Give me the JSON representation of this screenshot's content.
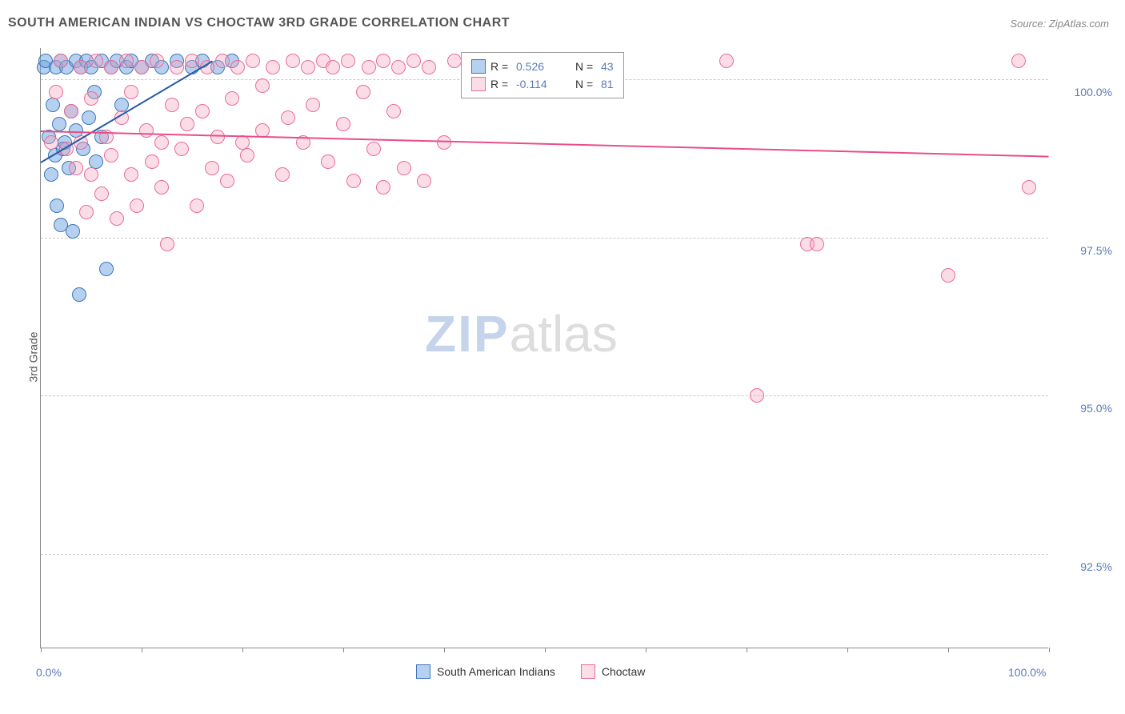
{
  "title": "SOUTH AMERICAN INDIAN VS CHOCTAW 3RD GRADE CORRELATION CHART",
  "source": "Source: ZipAtlas.com",
  "y_axis_label": "3rd Grade",
  "watermark": {
    "zip": "ZIP",
    "atlas": "atlas"
  },
  "chart": {
    "type": "scatter",
    "xlim": [
      0,
      100
    ],
    "ylim": [
      91,
      100.5
    ],
    "background_color": "#ffffff",
    "grid_color": "#cccccc",
    "grid_style": "dashed",
    "axis_color": "#888888",
    "y_ticks": [
      {
        "value": 100.0,
        "label": "100.0%"
      },
      {
        "value": 97.5,
        "label": "97.5%"
      },
      {
        "value": 95.0,
        "label": "95.0%"
      },
      {
        "value": 92.5,
        "label": "92.5%"
      }
    ],
    "x_ticks": [
      0,
      10,
      20,
      30,
      40,
      50,
      60,
      70,
      80,
      90,
      100
    ],
    "x_tick_labels": [
      {
        "value": 0,
        "label": "0.0%"
      },
      {
        "value": 100,
        "label": "100.0%"
      }
    ],
    "tick_label_color": "#5b7bb5",
    "tick_label_fontsize": 14,
    "marker_radius": 9,
    "marker_stroke_width": 1.2,
    "series": [
      {
        "name": "South American Indians",
        "label": "South American Indians",
        "fill_color": "#6ea4e180",
        "stroke_color": "#3f75b5",
        "r_value": "0.526",
        "n_value": "43",
        "trend": {
          "x1": 0,
          "y1": 98.7,
          "x2": 17,
          "y2": 100.3,
          "color": "#2a5aa5",
          "width": 2
        },
        "points": [
          [
            0.3,
            100.2
          ],
          [
            0.5,
            100.3
          ],
          [
            0.8,
            99.1
          ],
          [
            1.0,
            98.5
          ],
          [
            1.2,
            99.6
          ],
          [
            1.4,
            98.8
          ],
          [
            1.5,
            100.2
          ],
          [
            1.6,
            98.0
          ],
          [
            1.8,
            99.3
          ],
          [
            2.0,
            97.7
          ],
          [
            2.0,
            100.3
          ],
          [
            2.2,
            98.9
          ],
          [
            2.4,
            99.0
          ],
          [
            2.5,
            100.2
          ],
          [
            2.8,
            98.6
          ],
          [
            3.0,
            99.5
          ],
          [
            3.2,
            97.6
          ],
          [
            3.5,
            100.3
          ],
          [
            3.5,
            99.2
          ],
          [
            3.8,
            96.6
          ],
          [
            4.0,
            100.2
          ],
          [
            4.2,
            98.9
          ],
          [
            4.5,
            100.3
          ],
          [
            4.8,
            99.4
          ],
          [
            5.0,
            100.2
          ],
          [
            5.3,
            99.8
          ],
          [
            5.5,
            98.7
          ],
          [
            6.0,
            100.3
          ],
          [
            6.0,
            99.1
          ],
          [
            6.5,
            97.0
          ],
          [
            7.0,
            100.2
          ],
          [
            7.5,
            100.3
          ],
          [
            8.0,
            99.6
          ],
          [
            8.5,
            100.2
          ],
          [
            9.0,
            100.3
          ],
          [
            10.0,
            100.2
          ],
          [
            11.0,
            100.3
          ],
          [
            12.0,
            100.2
          ],
          [
            13.5,
            100.3
          ],
          [
            15.0,
            100.2
          ],
          [
            16.0,
            100.3
          ],
          [
            17.5,
            100.2
          ],
          [
            19.0,
            100.3
          ]
        ]
      },
      {
        "name": "Choctaw",
        "label": "Choctaw",
        "fill_color": "#f4a5bd60",
        "stroke_color": "#e86c9a",
        "r_value": "-0.114",
        "n_value": "81",
        "trend": {
          "x1": 0,
          "y1": 99.2,
          "x2": 100,
          "y2": 98.8,
          "color": "#e84d8a",
          "width": 2
        },
        "points": [
          [
            1.0,
            99.0
          ],
          [
            1.5,
            99.8
          ],
          [
            2.0,
            100.3
          ],
          [
            2.5,
            98.9
          ],
          [
            3.0,
            99.5
          ],
          [
            3.5,
            98.6
          ],
          [
            4.0,
            100.2
          ],
          [
            4.0,
            99.0
          ],
          [
            4.5,
            97.9
          ],
          [
            5.0,
            99.7
          ],
          [
            5.0,
            98.5
          ],
          [
            5.5,
            100.3
          ],
          [
            6.0,
            98.2
          ],
          [
            6.5,
            99.1
          ],
          [
            7.0,
            100.2
          ],
          [
            7.0,
            98.8
          ],
          [
            7.5,
            97.8
          ],
          [
            8.0,
            99.4
          ],
          [
            8.5,
            100.3
          ],
          [
            9.0,
            98.5
          ],
          [
            9.0,
            99.8
          ],
          [
            9.5,
            98.0
          ],
          [
            10.0,
            100.2
          ],
          [
            10.5,
            99.2
          ],
          [
            11.0,
            98.7
          ],
          [
            11.5,
            100.3
          ],
          [
            12.0,
            99.0
          ],
          [
            12.0,
            98.3
          ],
          [
            12.5,
            97.4
          ],
          [
            13.0,
            99.6
          ],
          [
            13.5,
            100.2
          ],
          [
            14.0,
            98.9
          ],
          [
            14.5,
            99.3
          ],
          [
            15.0,
            100.3
          ],
          [
            15.5,
            98.0
          ],
          [
            16.0,
            99.5
          ],
          [
            16.5,
            100.2
          ],
          [
            17.0,
            98.6
          ],
          [
            17.5,
            99.1
          ],
          [
            18.0,
            100.3
          ],
          [
            18.5,
            98.4
          ],
          [
            19.0,
            99.7
          ],
          [
            19.5,
            100.2
          ],
          [
            20.0,
            99.0
          ],
          [
            20.5,
            98.8
          ],
          [
            21.0,
            100.3
          ],
          [
            22.0,
            99.2
          ],
          [
            22.0,
            99.9
          ],
          [
            23.0,
            100.2
          ],
          [
            24.0,
            98.5
          ],
          [
            24.5,
            99.4
          ],
          [
            25.0,
            100.3
          ],
          [
            26.0,
            99.0
          ],
          [
            26.5,
            100.2
          ],
          [
            27.0,
            99.6
          ],
          [
            28.0,
            100.3
          ],
          [
            28.5,
            98.7
          ],
          [
            29.0,
            100.2
          ],
          [
            30.0,
            99.3
          ],
          [
            30.5,
            100.3
          ],
          [
            31.0,
            98.4
          ],
          [
            32.0,
            99.8
          ],
          [
            32.5,
            100.2
          ],
          [
            33.0,
            98.9
          ],
          [
            34.0,
            100.3
          ],
          [
            34.0,
            98.3
          ],
          [
            35.0,
            99.5
          ],
          [
            35.5,
            100.2
          ],
          [
            36.0,
            98.6
          ],
          [
            37.0,
            100.3
          ],
          [
            38.0,
            98.4
          ],
          [
            38.5,
            100.2
          ],
          [
            40.0,
            99.0
          ],
          [
            41.0,
            100.3
          ],
          [
            68.0,
            100.3
          ],
          [
            71.0,
            95.0
          ],
          [
            76.0,
            97.4
          ],
          [
            77.0,
            97.4
          ],
          [
            90.0,
            96.9
          ],
          [
            97.0,
            100.3
          ],
          [
            98.0,
            98.3
          ]
        ]
      }
    ],
    "stats_legend": {
      "r_label": "R =",
      "n_label": "N ="
    },
    "bottom_legend": {
      "items": [
        "South American Indians",
        "Choctaw"
      ]
    }
  }
}
